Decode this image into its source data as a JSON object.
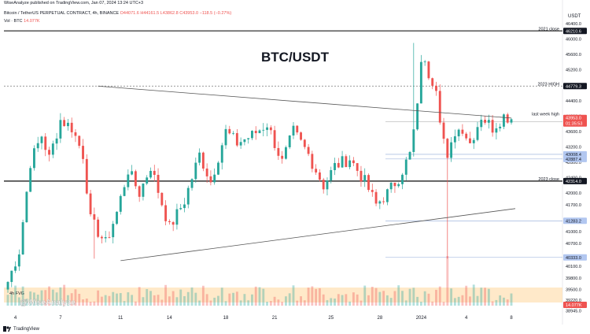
{
  "topbar": {
    "text": "WiseAnalyze published on TradingView.com, Jan 07, 2024 13:24 UTC+3"
  },
  "legend": {
    "symbol": "Bitcoin / TetherUS PERPETUAL CONTRACT, 4h, BINANCE",
    "open": "O44071.6",
    "high": "H44161.5",
    "low": "L43862.8",
    "close": "C43953.0",
    "change": "−118.5 (−0.27%)",
    "vol_label": "Vol · BTC",
    "vol_value": "14.077K"
  },
  "currency": "USDT",
  "chart_data": {
    "type": "candlestick",
    "title": "BTC/USDT",
    "timeframe": "4h",
    "ylim": [
      39000,
      46400
    ],
    "x_ticks": [
      "4",
      "7",
      "11",
      "14",
      "18",
      "21",
      "25",
      "28",
      "2024",
      "4",
      "8"
    ],
    "y_ticks": [
      "46400.0",
      "46000.0",
      "45600.0",
      "45200.0",
      "44800.0",
      "44400.0",
      "44000.0",
      "43600.0",
      "43200.0",
      "42800.0",
      "42400.0",
      "42000.0",
      "41700.0",
      "41300.0",
      "41000.0",
      "40700.0",
      "40300.0",
      "40100.0",
      "39800.0",
      "39500.0",
      "39220.0",
      "38945.0"
    ],
    "levels": [
      {
        "label": "2021 close",
        "price": "46210.6",
        "value": 46210.6
      },
      {
        "label": "2023 HIGH",
        "price": "44779.3",
        "value": 44779.3
      },
      {
        "label": "last week high",
        "price": "",
        "value": 44000
      },
      {
        "label": "",
        "price": "43850.0",
        "value": 43850
      },
      {
        "label": "",
        "price": "43008.4",
        "value": 43008.4
      },
      {
        "label": "",
        "price": "42887.4",
        "value": 42887.4
      },
      {
        "label": "2023 close",
        "price": "42314.0",
        "value": 42314
      },
      {
        "label": "",
        "price": "41283.2",
        "value": 41283.2
      },
      {
        "label": "",
        "price": "40333.0",
        "value": 40333
      }
    ],
    "last_price": "43953.0",
    "countdown": "01:35:53",
    "volume_last": "14.077K",
    "fvg_label": "4h FVG",
    "fvg_range": [
      38945,
      39220
    ],
    "watermark": "@WiseAnalyze",
    "trendlines": [
      {
        "from": {
          "x": "Dec 8",
          "y": 44779
        },
        "to": {
          "x": "Jan 7",
          "y": 43950
        }
      },
      {
        "from": {
          "x": "Dec 11",
          "y": 40250
        },
        "to": {
          "x": "Jan 8",
          "y": 41600
        }
      }
    ]
  },
  "footer": {
    "brand": "TradingView"
  }
}
